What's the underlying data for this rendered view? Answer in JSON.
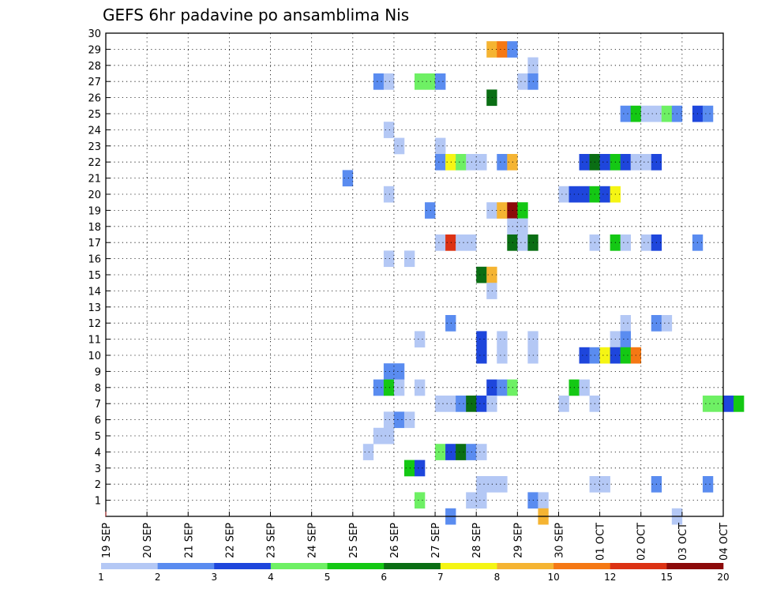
{
  "chart_data": {
    "type": "heatmap",
    "title": "GEFS 6hr padavine po ansamblima Nis",
    "x_tick_labels": [
      "19 SEP",
      "20 SEP",
      "21 SEP",
      "22 SEP",
      "23 SEP",
      "24 SEP",
      "25 SEP",
      "26 SEP",
      "27 SEP",
      "28 SEP",
      "29 SEP",
      "30 SEP",
      "01 OCT",
      "02 OCT",
      "03 OCT",
      "04 OCT"
    ],
    "y_tick_labels": [
      "1",
      "2",
      "3",
      "4",
      "5",
      "6",
      "7",
      "8",
      "9",
      "10",
      "11",
      "12",
      "13",
      "14",
      "15",
      "16",
      "17",
      "18",
      "19",
      "20",
      "21",
      "22",
      "23",
      "24",
      "25",
      "26",
      "27",
      "28",
      "29",
      "30"
    ],
    "xlim_days": [
      0,
      15
    ],
    "ylim_members": [
      0,
      30
    ],
    "grid": true,
    "color_scale": {
      "labels": [
        "1",
        "2",
        "3",
        "4",
        "5",
        "6",
        "7",
        "8",
        "10",
        "12",
        "15",
        "20"
      ],
      "colors": [
        "#b4c8f5",
        "#5a8cf0",
        "#1e46dc",
        "#6ef064",
        "#14c814",
        "#0a6e14",
        "#f5f514",
        "#f5b432",
        "#f57814",
        "#dc3214",
        "#8c0a0a"
      ]
    },
    "cells": [
      {
        "m": 29,
        "s": 37,
        "c": 8
      },
      {
        "m": 29,
        "s": 38,
        "c": 9
      },
      {
        "m": 29,
        "s": 39,
        "c": 2
      },
      {
        "m": 28,
        "s": 41,
        "c": 1
      },
      {
        "m": 27,
        "s": 26,
        "c": 2
      },
      {
        "m": 27,
        "s": 27,
        "c": 1
      },
      {
        "m": 27,
        "s": 30,
        "c": 4
      },
      {
        "m": 27,
        "s": 31,
        "c": 4
      },
      {
        "m": 27,
        "s": 32,
        "c": 2
      },
      {
        "m": 27,
        "s": 40,
        "c": 1
      },
      {
        "m": 27,
        "s": 41,
        "c": 2
      },
      {
        "m": 26,
        "s": 37,
        "c": 6
      },
      {
        "m": 25,
        "s": 50,
        "c": 2
      },
      {
        "m": 25,
        "s": 51,
        "c": 5
      },
      {
        "m": 25,
        "s": 52,
        "c": 1
      },
      {
        "m": 25,
        "s": 53,
        "c": 1
      },
      {
        "m": 25,
        "s": 54,
        "c": 4
      },
      {
        "m": 25,
        "s": 55,
        "c": 2
      },
      {
        "m": 25,
        "s": 57,
        "c": 3
      },
      {
        "m": 25,
        "s": 58,
        "c": 2
      },
      {
        "m": 24,
        "s": 27,
        "c": 1
      },
      {
        "m": 23,
        "s": 28,
        "c": 1
      },
      {
        "m": 23,
        "s": 32,
        "c": 1
      },
      {
        "m": 22,
        "s": 32,
        "c": 2
      },
      {
        "m": 22,
        "s": 33,
        "c": 7
      },
      {
        "m": 22,
        "s": 34,
        "c": 4
      },
      {
        "m": 22,
        "s": 35,
        "c": 1
      },
      {
        "m": 22,
        "s": 36,
        "c": 1
      },
      {
        "m": 22,
        "s": 38,
        "c": 2
      },
      {
        "m": 22,
        "s": 39,
        "c": 8
      },
      {
        "m": 22,
        "s": 46,
        "c": 3
      },
      {
        "m": 22,
        "s": 47,
        "c": 6
      },
      {
        "m": 22,
        "s": 48,
        "c": 3
      },
      {
        "m": 22,
        "s": 49,
        "c": 5
      },
      {
        "m": 22,
        "s": 50,
        "c": 3
      },
      {
        "m": 22,
        "s": 51,
        "c": 1
      },
      {
        "m": 22,
        "s": 52,
        "c": 1
      },
      {
        "m": 22,
        "s": 53,
        "c": 3
      },
      {
        "m": 21,
        "s": 23,
        "c": 2
      },
      {
        "m": 20,
        "s": 27,
        "c": 1
      },
      {
        "m": 20,
        "s": 44,
        "c": 1
      },
      {
        "m": 20,
        "s": 45,
        "c": 3
      },
      {
        "m": 20,
        "s": 46,
        "c": 3
      },
      {
        "m": 20,
        "s": 47,
        "c": 5
      },
      {
        "m": 20,
        "s": 48,
        "c": 3
      },
      {
        "m": 20,
        "s": 49,
        "c": 7
      },
      {
        "m": 19,
        "s": 31,
        "c": 2
      },
      {
        "m": 19,
        "s": 37,
        "c": 1
      },
      {
        "m": 19,
        "s": 38,
        "c": 8
      },
      {
        "m": 19,
        "s": 39,
        "c": 11
      },
      {
        "m": 19,
        "s": 40,
        "c": 5
      },
      {
        "m": 18,
        "s": 39,
        "c": 1
      },
      {
        "m": 18,
        "s": 40,
        "c": 1
      },
      {
        "m": 17,
        "s": 32,
        "c": 1
      },
      {
        "m": 17,
        "s": 33,
        "c": 10
      },
      {
        "m": 17,
        "s": 34,
        "c": 1
      },
      {
        "m": 17,
        "s": 35,
        "c": 1
      },
      {
        "m": 17,
        "s": 39,
        "c": 6
      },
      {
        "m": 17,
        "s": 40,
        "c": 1
      },
      {
        "m": 17,
        "s": 41,
        "c": 6
      },
      {
        "m": 17,
        "s": 47,
        "c": 1
      },
      {
        "m": 17,
        "s": 49,
        "c": 5
      },
      {
        "m": 17,
        "s": 50,
        "c": 1
      },
      {
        "m": 17,
        "s": 52,
        "c": 1
      },
      {
        "m": 17,
        "s": 53,
        "c": 3
      },
      {
        "m": 17,
        "s": 57,
        "c": 2
      },
      {
        "m": 16,
        "s": 27,
        "c": 1
      },
      {
        "m": 16,
        "s": 29,
        "c": 1
      },
      {
        "m": 15,
        "s": 36,
        "c": 6
      },
      {
        "m": 15,
        "s": 37,
        "c": 8
      },
      {
        "m": 14,
        "s": 37,
        "c": 1
      },
      {
        "m": 12,
        "s": 33,
        "c": 2
      },
      {
        "m": 12,
        "s": 50,
        "c": 1
      },
      {
        "m": 12,
        "s": 53,
        "c": 2
      },
      {
        "m": 12,
        "s": 54,
        "c": 1
      },
      {
        "m": 11,
        "s": 30,
        "c": 1
      },
      {
        "m": 11,
        "s": 36,
        "c": 3
      },
      {
        "m": 11,
        "s": 38,
        "c": 1
      },
      {
        "m": 11,
        "s": 41,
        "c": 1
      },
      {
        "m": 11,
        "s": 49,
        "c": 1
      },
      {
        "m": 11,
        "s": 50,
        "c": 2
      },
      {
        "m": 10,
        "s": 36,
        "c": 3
      },
      {
        "m": 10,
        "s": 38,
        "c": 1
      },
      {
        "m": 10,
        "s": 41,
        "c": 1
      },
      {
        "m": 10,
        "s": 46,
        "c": 3
      },
      {
        "m": 10,
        "s": 47,
        "c": 2
      },
      {
        "m": 10,
        "s": 48,
        "c": 7
      },
      {
        "m": 10,
        "s": 49,
        "c": 3
      },
      {
        "m": 10,
        "s": 50,
        "c": 5
      },
      {
        "m": 10,
        "s": 51,
        "c": 9
      },
      {
        "m": 9,
        "s": 27,
        "c": 2
      },
      {
        "m": 9,
        "s": 28,
        "c": 2
      },
      {
        "m": 8,
        "s": 26,
        "c": 2
      },
      {
        "m": 8,
        "s": 27,
        "c": 5
      },
      {
        "m": 8,
        "s": 28,
        "c": 1
      },
      {
        "m": 8,
        "s": 30,
        "c": 1
      },
      {
        "m": 8,
        "s": 37,
        "c": 3
      },
      {
        "m": 8,
        "s": 38,
        "c": 2
      },
      {
        "m": 8,
        "s": 39,
        "c": 4
      },
      {
        "m": 8,
        "s": 45,
        "c": 5
      },
      {
        "m": 8,
        "s": 46,
        "c": 1
      },
      {
        "m": 7,
        "s": 32,
        "c": 1
      },
      {
        "m": 7,
        "s": 33,
        "c": 1
      },
      {
        "m": 7,
        "s": 34,
        "c": 2
      },
      {
        "m": 7,
        "s": 35,
        "c": 6
      },
      {
        "m": 7,
        "s": 36,
        "c": 3
      },
      {
        "m": 7,
        "s": 37,
        "c": 1
      },
      {
        "m": 7,
        "s": 44,
        "c": 1
      },
      {
        "m": 7,
        "s": 47,
        "c": 1
      },
      {
        "m": 7,
        "s": 58,
        "c": 4
      },
      {
        "m": 7,
        "s": 59,
        "c": 4
      },
      {
        "m": 7,
        "s": 60,
        "c": 3
      },
      {
        "m": 7,
        "s": 61,
        "c": 5
      },
      {
        "m": 6,
        "s": 27,
        "c": 1
      },
      {
        "m": 6,
        "s": 28,
        "c": 2
      },
      {
        "m": 6,
        "s": 29,
        "c": 1
      },
      {
        "m": 5,
        "s": 26,
        "c": 1
      },
      {
        "m": 5,
        "s": 27,
        "c": 1
      },
      {
        "m": 4,
        "s": 25,
        "c": 1
      },
      {
        "m": 4,
        "s": 32,
        "c": 4
      },
      {
        "m": 4,
        "s": 33,
        "c": 3
      },
      {
        "m": 4,
        "s": 34,
        "c": 6
      },
      {
        "m": 4,
        "s": 35,
        "c": 2
      },
      {
        "m": 4,
        "s": 36,
        "c": 1
      },
      {
        "m": 3,
        "s": 29,
        "c": 5
      },
      {
        "m": 3,
        "s": 30,
        "c": 3
      },
      {
        "m": 2,
        "s": 36,
        "c": 1
      },
      {
        "m": 2,
        "s": 37,
        "c": 1
      },
      {
        "m": 2,
        "s": 38,
        "c": 1
      },
      {
        "m": 2,
        "s": 47,
        "c": 1
      },
      {
        "m": 2,
        "s": 48,
        "c": 1
      },
      {
        "m": 2,
        "s": 53,
        "c": 2
      },
      {
        "m": 2,
        "s": 58,
        "c": 2
      },
      {
        "m": 1,
        "s": 30,
        "c": 4
      },
      {
        "m": 1,
        "s": 35,
        "c": 1
      },
      {
        "m": 1,
        "s": 36,
        "c": 1
      },
      {
        "m": 1,
        "s": 41,
        "c": 2
      },
      {
        "m": 1,
        "s": 42,
        "c": 1
      },
      {
        "m": 0,
        "s": 33,
        "c": 2
      },
      {
        "m": 0,
        "s": 42,
        "c": 8
      },
      {
        "m": 0,
        "s": 55,
        "c": 1
      }
    ]
  }
}
